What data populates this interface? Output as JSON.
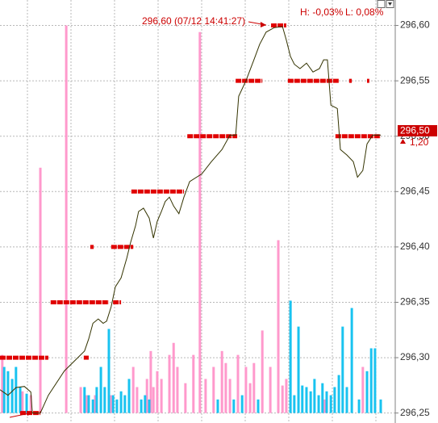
{
  "chart_data": {
    "type": "line",
    "annotation": "296,60 (07/12 14:41:27)",
    "high_label": "H: -0,03%",
    "low_label": "L: 0,08%",
    "last_price": {
      "value": 296.5,
      "label": "296,50"
    },
    "change": {
      "value": 1.2,
      "label": "1,20"
    },
    "color": "#333300",
    "grid": true,
    "xlim": [
      0,
      100
    ],
    "ylim": [
      296.241,
      296.623
    ],
    "yticks": [
      {
        "value": 296.25,
        "label": "296,25"
      },
      {
        "value": 296.3,
        "label": "296,30"
      },
      {
        "value": 296.35,
        "label": "296,35"
      },
      {
        "value": 296.4,
        "label": "296,40"
      },
      {
        "value": 296.45,
        "label": "296,45"
      },
      {
        "value": 296.5,
        "label": "296,50"
      },
      {
        "value": 296.55,
        "label": "296,55"
      },
      {
        "value": 296.6,
        "label": "296,60"
      }
    ],
    "x": [
      0,
      2.1,
      4.2,
      6.4,
      8.1,
      8.5,
      10.6,
      12.7,
      16.9,
      22.2,
      23.3,
      24.4,
      25.8,
      27.1,
      28,
      29.2,
      30.3,
      31.8,
      33.3,
      34.3,
      35.6,
      36.4,
      37.7,
      39.2,
      40.3,
      41.3,
      42.4,
      43.4,
      44.5,
      45.6,
      47,
      48.3,
      49.8,
      53,
      55.5,
      58.3,
      60.4,
      61.9,
      62.7,
      64.6,
      66.7,
      68.2,
      69.9,
      72,
      74.2,
      75.2,
      76.3,
      77.3,
      78.8,
      80.5,
      82.2,
      83.9,
      85,
      86,
      86.9,
      88.6,
      89.4,
      91.1,
      92.8,
      93.9,
      95.3,
      96.4,
      97.9,
      100
    ],
    "values": [
      296.271,
      296.266,
      296.273,
      296.274,
      296.269,
      296.25,
      296.25,
      296.266,
      296.288,
      296.306,
      296.317,
      296.331,
      296.335,
      296.331,
      296.333,
      296.346,
      296.364,
      296.372,
      296.39,
      296.404,
      296.419,
      296.432,
      296.435,
      296.426,
      296.408,
      296.423,
      296.432,
      296.441,
      296.445,
      296.437,
      296.43,
      296.445,
      296.459,
      296.466,
      296.477,
      296.488,
      296.501,
      296.501,
      296.536,
      296.55,
      296.569,
      296.583,
      296.594,
      296.598,
      296.599,
      296.587,
      296.572,
      296.565,
      296.561,
      296.566,
      296.558,
      296.561,
      296.569,
      296.569,
      296.528,
      296.525,
      296.488,
      296.483,
      296.477,
      296.463,
      296.469,
      296.493,
      296.501,
      296.501
    ],
    "levels": {
      "color": "#e00000",
      "price": [
        296.25,
        296.3,
        296.3,
        296.35,
        296.35,
        296.4,
        296.4,
        296.45,
        296.5,
        296.5,
        296.55,
        296.55,
        296.55,
        296.55,
        296.6
      ],
      "start": [
        5.3,
        0,
        22,
        13.3,
        29.7,
        23.7,
        29.2,
        34.5,
        49.2,
        88.1,
        61.9,
        75.6,
        91.7,
        96.4,
        71.2
      ],
      "end": [
        10.6,
        12.7,
        23.3,
        28.6,
        31.8,
        24.6,
        35,
        48.3,
        62.3,
        100,
        68.9,
        89,
        92.4,
        97,
        75.2
      ]
    },
    "volume": {
      "ylim": [
        0,
        100
      ],
      "series": [
        {
          "color": "#ff99cc",
          "x": [
            0.6,
            5.9,
            8.1,
            10.6,
            17.4,
            21.2,
            22.7,
            25,
            29.2,
            35,
            36,
            38.6,
            39.6,
            40.3,
            41.3,
            42.4,
            44.5,
            45.6,
            46.6,
            48.7,
            50.8,
            52.5,
            54,
            56.1,
            58.3,
            59.3,
            60.4,
            62.5,
            64.6,
            65.7,
            66.7,
            68.9,
            71,
            73.1,
            74.2,
            75.2,
            85.2,
            95.3
          ],
          "values": [
            15,
            5.6,
            4.6,
            63.3,
            100,
            6.7,
            4.6,
            4.6,
            4.6,
            11.9,
            6.7,
            8.8,
            16,
            6.7,
            10.8,
            8.8,
            15,
            18.1,
            11.9,
            7.7,
            15,
            98.3,
            8.8,
            11.9,
            16,
            12.9,
            8.8,
            15,
            11.9,
            7.7,
            12.9,
            21.3,
            11.9,
            44.6,
            7.1,
            8.8,
            3.5,
            11.9
          ]
        },
        {
          "color": "#19c3f0",
          "x": [
            1.1,
            2.1,
            3.2,
            4.2,
            5.3,
            7,
            22.2,
            23.3,
            24.4,
            25.4,
            26.5,
            27.5,
            28.6,
            29.7,
            30.7,
            31.8,
            32.8,
            33.9,
            37.1,
            38.1,
            39.2,
            57.2,
            61.4,
            63.6,
            67.8,
            76.3,
            77.3,
            78.4,
            79.4,
            80.5,
            81.6,
            82.6,
            83.7,
            84.7,
            85.8,
            86.9,
            87.9,
            89,
            90,
            91.1,
            92.4,
            94.3,
            96.4,
            97.5,
            98.5,
            100
          ],
          "values": [
            11.9,
            10.8,
            8.8,
            11.9,
            6.7,
            5,
            6.7,
            4.6,
            3.5,
            6.7,
            11.9,
            6.7,
            21.7,
            4.6,
            3.5,
            5.6,
            4.6,
            8.8,
            3.5,
            4.6,
            3.5,
            3.5,
            3.5,
            4.6,
            3.5,
            29,
            4.6,
            22.3,
            7.1,
            6.7,
            5.6,
            8.8,
            4.6,
            7.7,
            5.6,
            4.6,
            6.7,
            9.8,
            22.3,
            6.7,
            27.1,
            3.5,
            10.8,
            16.7,
            16.7,
            3.5
          ]
        }
      ]
    }
  }
}
